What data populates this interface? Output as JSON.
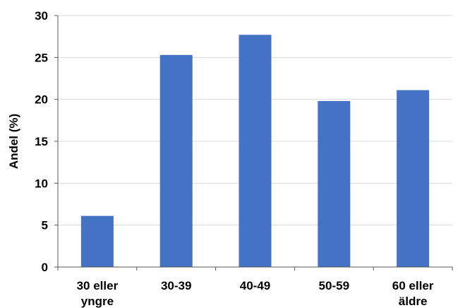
{
  "chart_data": {
    "type": "bar",
    "categories": [
      [
        "30 eller",
        "yngre"
      ],
      [
        "30-39"
      ],
      [
        "40-49"
      ],
      [
        "50-59"
      ],
      [
        "60 eller",
        "äldre"
      ]
    ],
    "values": [
      6.1,
      25.3,
      27.7,
      19.8,
      21.1
    ],
    "ylabel": "Andel (%)",
    "xlabel": "",
    "ylim": [
      0,
      30
    ],
    "yticks": [
      0,
      5,
      10,
      15,
      20,
      25,
      30
    ],
    "grid": true,
    "legend": "none",
    "bar_color": "#4472c4"
  }
}
